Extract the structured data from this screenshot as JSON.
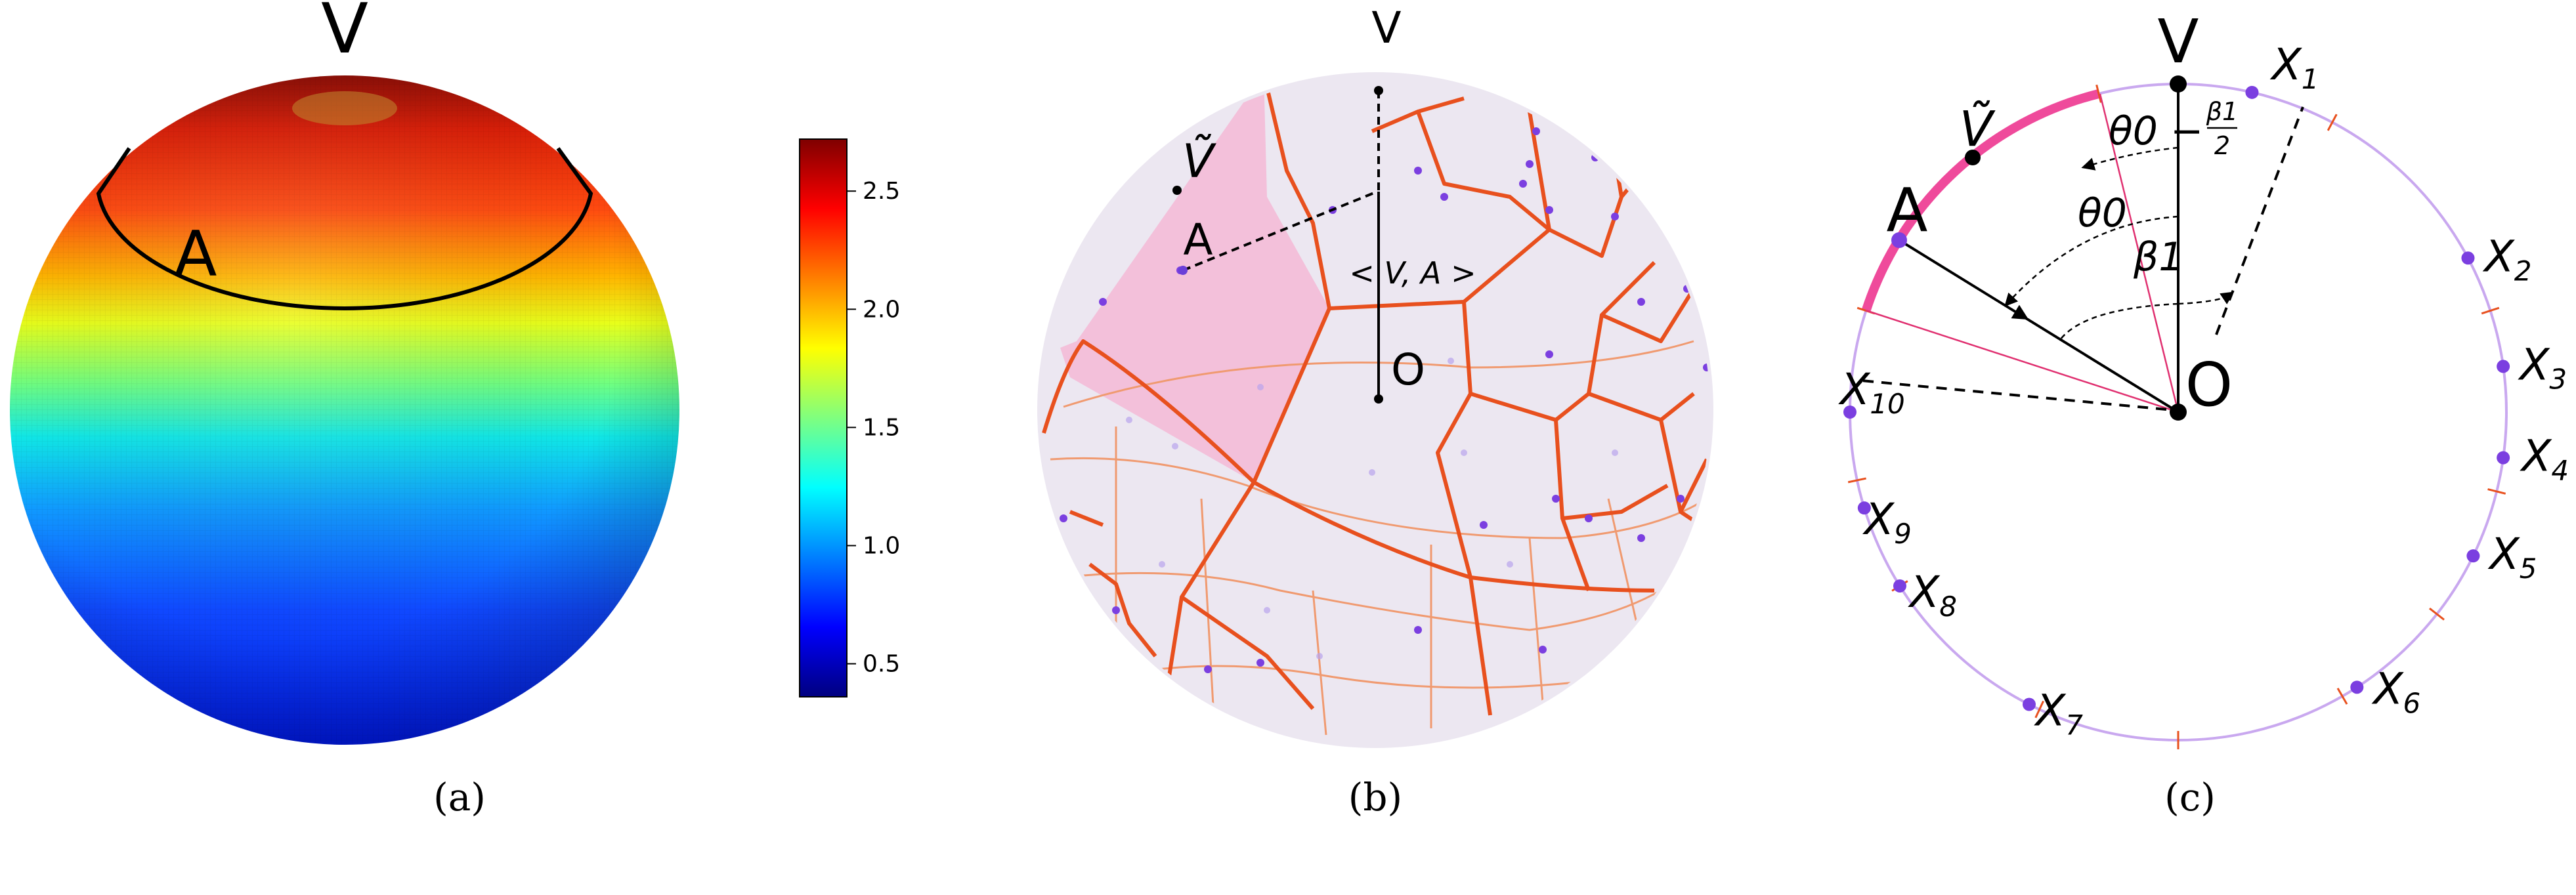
{
  "panel_a": {
    "top_label": "V",
    "circle_label": "A",
    "caption": "(a)",
    "colorbar": {
      "colors": [
        "#00007f",
        "#0000ff",
        "#007fff",
        "#00ffff",
        "#7fff7f",
        "#ffff00",
        "#ff7f00",
        "#ff0000",
        "#7f0000"
      ],
      "range": [
        0.36,
        2.72
      ],
      "ticks": [
        "0.5",
        "1.0",
        "1.5",
        "2.0",
        "2.5"
      ]
    }
  },
  "panel_b": {
    "top_label": "V",
    "vtilde_label": "Ṽ",
    "a_label": "A",
    "angle_label": "< V, A >",
    "o_label": "O",
    "caption": "(b)",
    "voronoi_color": "#e8501e",
    "highlight_color": "#f4b8d6"
  },
  "panel_c": {
    "v_label": "V",
    "vtilde_label": "Ṽ",
    "a_label": "A",
    "o_label": "O",
    "theta_half_label": "θ0 −",
    "beta_frac_num": "β1",
    "beta_frac_den": "2",
    "theta_label": "θ0",
    "beta_label": "β1",
    "x_label_prefix": "X",
    "point_labels": [
      "1",
      "2",
      "3",
      "4",
      "5",
      "6",
      "7",
      "8",
      "9",
      "10"
    ],
    "caption": "(c)",
    "circle_color": "#c9a8ef",
    "arc_color": "#ef4a9b",
    "point_color": "#7b3fe0"
  }
}
